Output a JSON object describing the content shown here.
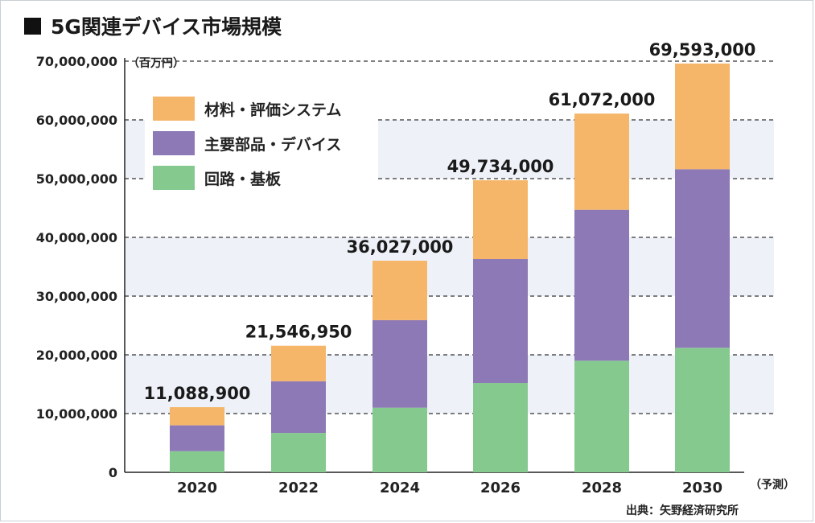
{
  "header": {
    "title": "5G関連デバイス市場規模"
  },
  "unit_label": "（百万円）",
  "note_label": "（予測）",
  "source": "出典：矢野経済研究所",
  "colors": {
    "materials": "#f5b66a",
    "components": "#8c79b6",
    "circuits": "#85c98f",
    "band": "#eef2f8",
    "grid": "#333333"
  },
  "chart_data": {
    "type": "bar",
    "stacked": true,
    "title": "5G関連デバイス市場規模",
    "ylabel": "（百万円）",
    "xlabel": "",
    "ylim": [
      0,
      70000000
    ],
    "yticks": [
      0,
      10000000,
      20000000,
      30000000,
      40000000,
      50000000,
      60000000,
      70000000
    ],
    "ytick_labels": [
      "0",
      "10,000,000",
      "20,000,000",
      "30,000,000",
      "40,000,000",
      "50,000,000",
      "60,000,000",
      "70,000,000"
    ],
    "categories": [
      "2020",
      "2022",
      "2024",
      "2026",
      "2028",
      "2030"
    ],
    "series": [
      {
        "name": "回路・基板",
        "values": [
          3600000,
          6700000,
          11000000,
          15200000,
          19000000,
          21200000
        ]
      },
      {
        "name": "主要部品・デバイス",
        "values": [
          4400000,
          8800000,
          14900000,
          21100000,
          25700000,
          30400000
        ]
      },
      {
        "name": "材料・評価システム",
        "values": [
          3088900,
          6046950,
          10127000,
          13434000,
          16372000,
          17993000
        ]
      }
    ],
    "totals": [
      11088900,
      21546950,
      36027000,
      49734000,
      61072000,
      69593000
    ],
    "total_labels": [
      "11,088,900",
      "21,546,950",
      "36,027,000",
      "49,734,000",
      "61,072,000",
      "69,593,000"
    ],
    "legend": [
      "材料・評価システム",
      "主要部品・デバイス",
      "回路・基板"
    ],
    "legend_position": "top-left",
    "grid": true
  }
}
